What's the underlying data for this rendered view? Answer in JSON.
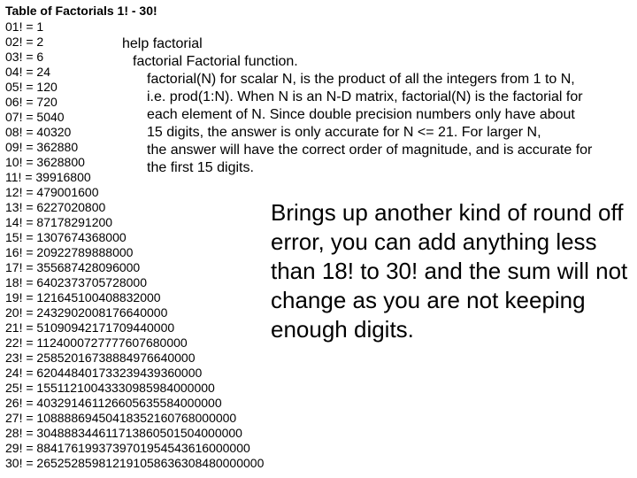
{
  "title": "Table of Factorials 1! - 30!",
  "factorials": [
    {
      "n": "01",
      "v": "1"
    },
    {
      "n": "02",
      "v": "2"
    },
    {
      "n": "03",
      "v": "6"
    },
    {
      "n": "04",
      "v": "24"
    },
    {
      "n": "05",
      "v": "120"
    },
    {
      "n": "06",
      "v": "720"
    },
    {
      "n": "07",
      "v": "5040"
    },
    {
      "n": "08",
      "v": "40320"
    },
    {
      "n": "09",
      "v": "362880"
    },
    {
      "n": "10",
      "v": "3628800"
    },
    {
      "n": "11",
      "v": "39916800"
    },
    {
      "n": "12",
      "v": "479001600"
    },
    {
      "n": "13",
      "v": "6227020800"
    },
    {
      "n": "14",
      "v": "87178291200"
    },
    {
      "n": "15",
      "v": "1307674368000"
    },
    {
      "n": "16",
      "v": "20922789888000"
    },
    {
      "n": "17",
      "v": "355687428096000"
    },
    {
      "n": "18",
      "v": "6402373705728000"
    },
    {
      "n": "19",
      "v": "121645100408832000"
    },
    {
      "n": "20",
      "v": "2432902008176640000"
    },
    {
      "n": "21",
      "v": "51090942171709440000"
    },
    {
      "n": "22",
      "v": "1124000727777607680000"
    },
    {
      "n": "23",
      "v": "25852016738884976640000"
    },
    {
      "n": "24",
      "v": "620448401733239439360000"
    },
    {
      "n": "25",
      "v": "15511210043330985984000000"
    },
    {
      "n": "26",
      "v": "403291461126605635584000000"
    },
    {
      "n": "27",
      "v": "10888869450418352160768000000"
    },
    {
      "n": "28",
      "v": "304888344611713860501504000000"
    },
    {
      "n": "29",
      "v": "8841761993739701954543616000000"
    },
    {
      "n": "30",
      "v": "265252859812191058636308480000000"
    }
  ],
  "help": {
    "cmd": "help factorial",
    "line1": "factorial Factorial function.",
    "line2": "factorial(N) for scalar N, is the product of all the integers from 1 to N,",
    "line3": "i.e. prod(1:N). When N is an N-D matrix, factorial(N) is the factorial for",
    "line4": "each element of N.  Since double precision numbers only have about",
    "line5": "15 digits, the answer is only accurate for N <= 21. For larger N,",
    "line6": "the answer will have the correct order of magnitude, and is accurate for",
    "line7": "the first 15 digits."
  },
  "roundoff": "Brings up another kind of round off error, you can add anything less than 18! to 30! and the sum will not change as you are not keeping enough digits."
}
